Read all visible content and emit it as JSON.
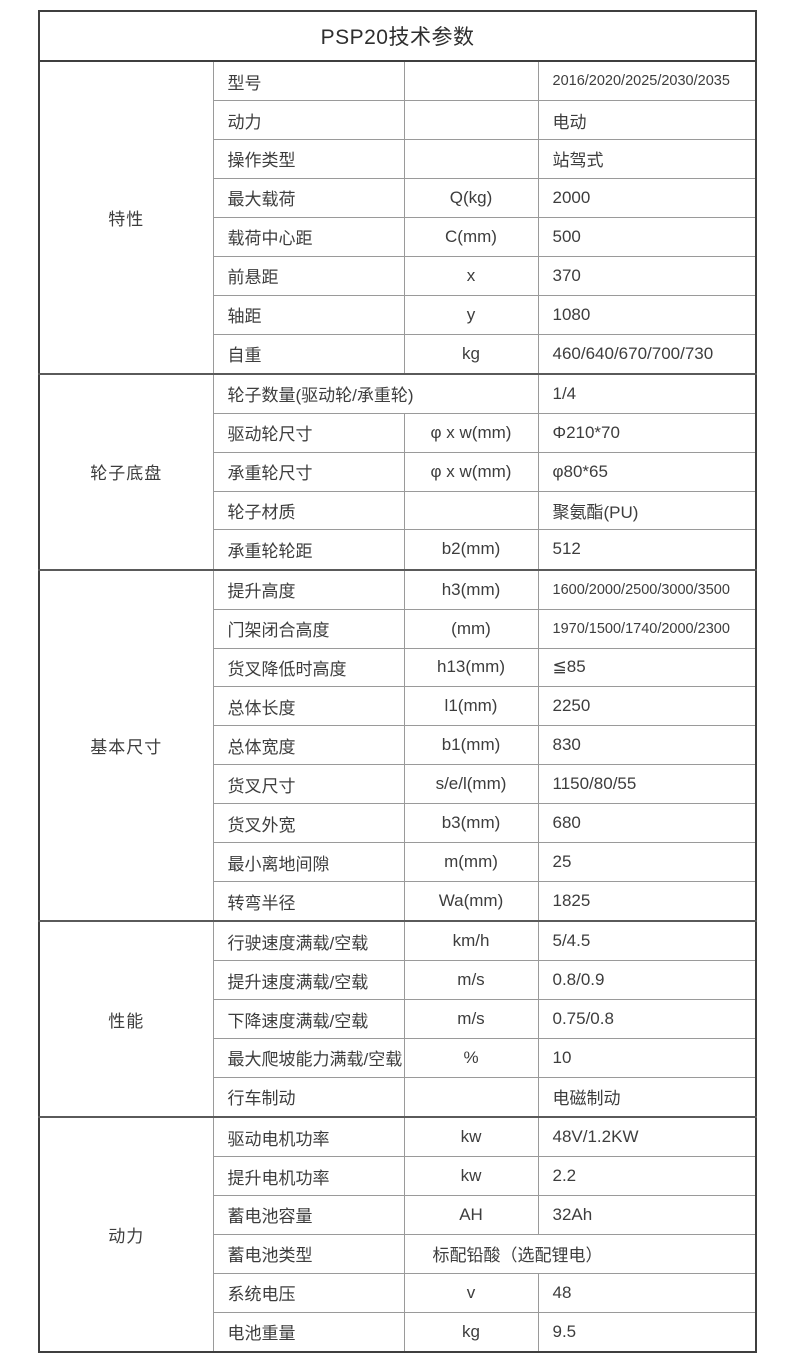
{
  "title": "PSP20技术参数",
  "table": {
    "sections": [
      {
        "name": "特性",
        "rows": [
          {
            "label": "型号",
            "symbol": "",
            "value": "2016/2020/2025/2030/2035"
          },
          {
            "label": "动力",
            "symbol": "",
            "value": "电动"
          },
          {
            "label": "操作类型",
            "symbol": "",
            "value": "站驾式"
          },
          {
            "label": "最大载荷",
            "symbol": "Q(kg)",
            "value": "2000"
          },
          {
            "label": "载荷中心距",
            "symbol": "C(mm)",
            "value": "500"
          },
          {
            "label": "前悬距",
            "symbol": "x",
            "value": "370"
          },
          {
            "label": "轴距",
            "symbol": "y",
            "value": "1080"
          },
          {
            "label": "自重",
            "symbol": "kg",
            "value": "460/640/670/700/730"
          }
        ]
      },
      {
        "name": "轮子底盘",
        "rows": [
          {
            "label": "轮子数量(驱动轮/承重轮)",
            "symbol": "",
            "value": "1/4",
            "merge": "label-symbol"
          },
          {
            "label": "驱动轮尺寸",
            "symbol": "φ x w(mm)",
            "value": "Φ210*70"
          },
          {
            "label": "承重轮尺寸",
            "symbol": "φ x w(mm)",
            "value": "φ80*65"
          },
          {
            "label": "轮子材质",
            "symbol": "",
            "value": "聚氨酯(PU)"
          },
          {
            "label": "承重轮轮距",
            "symbol": "b2(mm)",
            "value": "512"
          }
        ]
      },
      {
        "name": "基本尺寸",
        "rows": [
          {
            "label": "提升高度",
            "symbol": "h3(mm)",
            "value": "1600/2000/2500/3000/3500"
          },
          {
            "label": "门架闭合高度",
            "symbol": "(mm)",
            "value": "1970/1500/1740/2000/2300"
          },
          {
            "label": "货叉降低时高度",
            "symbol": "h13(mm)",
            "value": "≦85"
          },
          {
            "label": "总体长度",
            "symbol": "l1(mm)",
            "value": "2250"
          },
          {
            "label": "总体宽度",
            "symbol": "b1(mm)",
            "value": "830"
          },
          {
            "label": "货叉尺寸",
            "symbol": "s/e/l(mm)",
            "value": "1150/80/55"
          },
          {
            "label": "货叉外宽",
            "symbol": "b3(mm)",
            "value": "680"
          },
          {
            "label": "最小离地间隙",
            "symbol": "m(mm)",
            "value": "25"
          },
          {
            "label": "转弯半径",
            "symbol": "Wa(mm)",
            "value": "1825"
          }
        ]
      },
      {
        "name": "性能",
        "rows": [
          {
            "label": "行驶速度满载/空载",
            "symbol": "km/h",
            "value": "5/4.5"
          },
          {
            "label": "提升速度满载/空载",
            "symbol": "m/s",
            "value": "0.8/0.9"
          },
          {
            "label": "下降速度满载/空载",
            "symbol": "m/s",
            "value": "0.75/0.8"
          },
          {
            "label": "最大爬坡能力满载/空载",
            "symbol": "%",
            "value": "10"
          },
          {
            "label": "行车制动",
            "symbol": "",
            "value": "电磁制动"
          }
        ]
      },
      {
        "name": "动力",
        "rows": [
          {
            "label": "驱动电机功率",
            "symbol": "kw",
            "value": "48V/1.2KW"
          },
          {
            "label": "提升电机功率",
            "symbol": "kw",
            "value": "2.2"
          },
          {
            "label": "蓄电池容量",
            "symbol": "AH",
            "value": "32Ah"
          },
          {
            "label": "蓄电池类型",
            "symbol": "",
            "value": "标配铅酸（选配锂电）",
            "merge": "symbol-value"
          },
          {
            "label": "系统电压",
            "symbol": "v",
            "value": "48"
          },
          {
            "label": "电池重量",
            "symbol": "kg",
            "value": "9.5"
          }
        ]
      }
    ]
  }
}
